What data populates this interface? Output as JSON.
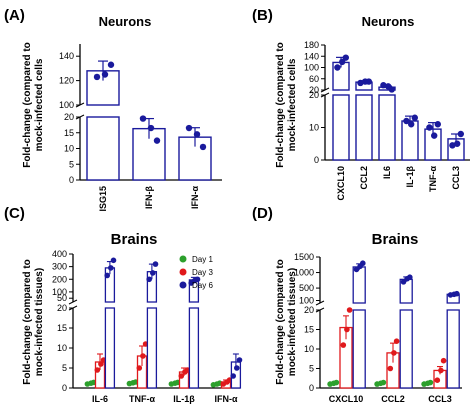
{
  "colors": {
    "bar": "#1a1a9c",
    "day1": "#2ca02c",
    "day3": "#e0191c",
    "day6": "#1a1a9c"
  },
  "chart_data": [
    {
      "panel": "(A)",
      "type": "bar",
      "title": "Neurons",
      "ylabel": [
        "Fold-change (compared to",
        "mock-infected cells"
      ],
      "break": {
        "low": [
          0,
          20
        ],
        "high": [
          100,
          150
        ],
        "low_ticks": [
          0,
          5,
          10,
          15,
          20
        ],
        "high_ticks": [
          100,
          120,
          140
        ]
      },
      "categories": [
        "ISG15",
        "IFN-β",
        "IFN-α"
      ],
      "values": [
        128,
        16.3,
        13.6
      ],
      "errors": [
        8,
        3.2,
        3.0
      ],
      "points": [
        [
          123,
          125,
          133
        ],
        [
          19.5,
          16.5,
          12.5
        ],
        [
          16.5,
          14.5,
          10.5
        ]
      ]
    },
    {
      "panel": "(B)",
      "type": "bar",
      "title": "Neurons",
      "ylabel": [
        "Fold-change (compared to",
        "mock-infected cells"
      ],
      "break": {
        "low": [
          0,
          20
        ],
        "high": [
          20,
          180
        ],
        "low_ticks": [
          0,
          10,
          20
        ],
        "high_ticks": [
          20,
          60,
          100,
          140,
          180
        ]
      },
      "categories": [
        "CXCL10",
        "CCL2",
        "IL6",
        "IL-1β",
        "TNF-α",
        "CCL3"
      ],
      "values": [
        118,
        48,
        30,
        12,
        9.5,
        6.5
      ],
      "errors": [
        18,
        5,
        4,
        1.5,
        2,
        1.5
      ],
      "points": [
        [
          100,
          120,
          135
        ],
        [
          45,
          50,
          50
        ],
        [
          37,
          33,
          22
        ],
        [
          12,
          11,
          13
        ],
        [
          10,
          7.5,
          11
        ],
        [
          4.5,
          5,
          8
        ]
      ]
    },
    {
      "panel": "(C)",
      "type": "bar",
      "title": "Brains",
      "ylabel": [
        "Fold-change (compared to",
        "mock-infected tissues)"
      ],
      "break": {
        "low": [
          0,
          20
        ],
        "high": [
          20,
          400
        ],
        "low_ticks": [
          0,
          5,
          10,
          15,
          20
        ],
        "high_ticks": [
          50,
          100,
          200,
          300,
          400
        ]
      },
      "legend": [
        "Day 1",
        "Day 3",
        "Day 6"
      ],
      "categories": [
        "IL-6",
        "TNF-α",
        "IL-1β",
        "IFN-α"
      ],
      "series": [
        {
          "name": "Day 1",
          "values": [
            1.2,
            1.3,
            1.2,
            1.0
          ],
          "points": [
            [
              1.0,
              1.2,
              1.4
            ],
            [
              1.1,
              1.3,
              1.5
            ],
            [
              1.0,
              1.2,
              1.4
            ],
            [
              0.8,
              1.0,
              1.2
            ]
          ]
        },
        {
          "name": "Day 3",
          "values": [
            6.5,
            8.0,
            4.0,
            1.5
          ],
          "errors": [
            2.0,
            2.5,
            1.0,
            0.5
          ],
          "points": [
            [
              4.5,
              6,
              7
            ],
            [
              5,
              8,
              11
            ],
            [
              3,
              4,
              4.5
            ],
            [
              1,
              1.5,
              2
            ]
          ]
        },
        {
          "name": "Day 6",
          "values": [
            290,
            260,
            195,
            6.5
          ],
          "errors": [
            50,
            60,
            20,
            2
          ],
          "points": [
            [
              230,
              290,
              350
            ],
            [
              200,
              250,
              320
            ],
            [
              170,
              190,
              200
            ],
            [
              3,
              5,
              7
            ]
          ]
        }
      ]
    },
    {
      "panel": "(D)",
      "type": "bar",
      "title": "Brains",
      "ylabel": [
        "Fold-change (compared to",
        "mock-infected tissues)"
      ],
      "break": {
        "low": [
          0,
          20
        ],
        "high": [
          20,
          1500
        ],
        "low_ticks": [
          0,
          5,
          10,
          15,
          20
        ],
        "high_ticks": [
          100,
          500,
          1000,
          1500
        ]
      },
      "categories": [
        "CXCL10",
        "CCL2",
        "CCL3"
      ],
      "series": [
        {
          "name": "Day 1",
          "values": [
            1.2,
            1.2,
            1.2
          ],
          "points": [
            [
              1,
              1.2,
              1.4
            ],
            [
              1,
              1.2,
              1.4
            ],
            [
              1,
              1.2,
              1.4
            ]
          ]
        },
        {
          "name": "Day 3",
          "values": [
            15.5,
            9.0,
            4.5
          ],
          "errors": [
            3,
            2.5,
            1
          ],
          "points": [
            [
              11,
              15,
              20
            ],
            [
              5,
              9,
              12
            ],
            [
              2,
              4.5,
              7
            ]
          ]
        },
        {
          "name": "Day 6",
          "values": [
            1180,
            780,
            300
          ],
          "errors": [
            100,
            80,
            30
          ],
          "points": [
            [
              1100,
              1200,
              1300
            ],
            [
              700,
              800,
              850
            ],
            [
              280,
              300,
              320
            ]
          ]
        }
      ]
    }
  ]
}
